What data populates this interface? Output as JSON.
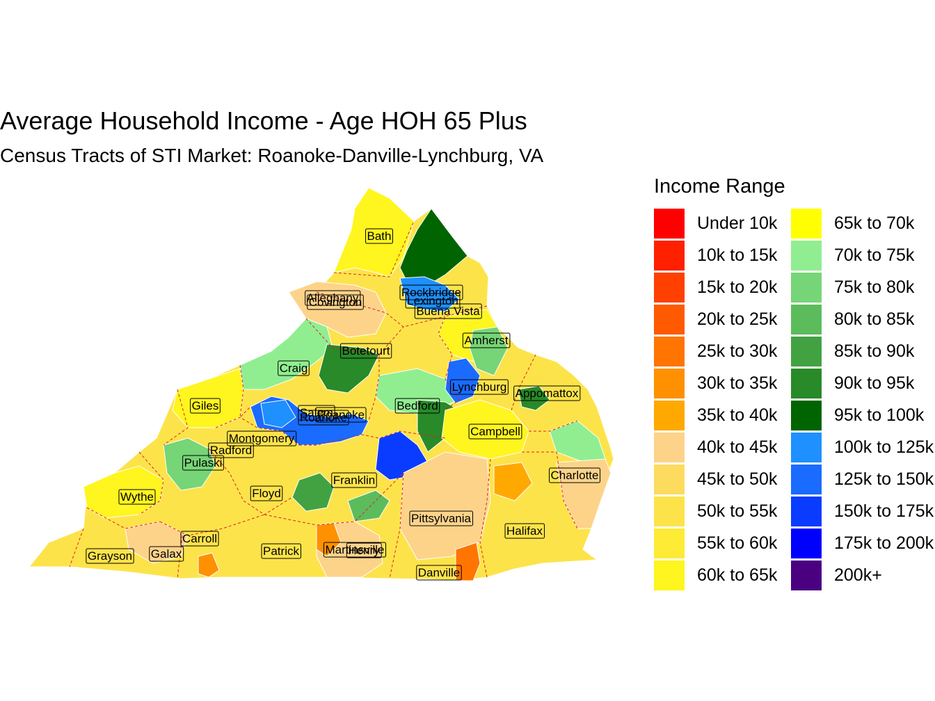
{
  "title": "Average Household Income - Age HOH 65 Plus",
  "subtitle": "Census Tracts of STI Market: Roanoke-Danville-Lynchburg, VA",
  "legend": {
    "title": "Income Range",
    "items": [
      {
        "label": "Under 10k",
        "color": "#FF0000"
      },
      {
        "label": "10k to 15k",
        "color": "#FF2000"
      },
      {
        "label": "15k to 20k",
        "color": "#FF4000"
      },
      {
        "label": "20k to 25k",
        "color": "#FF5A00"
      },
      {
        "label": "25k to 30k",
        "color": "#FF7500"
      },
      {
        "label": "30k to 35k",
        "color": "#FF9000"
      },
      {
        "label": "35k to 40k",
        "color": "#FFA800"
      },
      {
        "label": "40k to 45k",
        "color": "#FDD38A"
      },
      {
        "label": "45k to 50k",
        "color": "#FDDB5E"
      },
      {
        "label": "50k to 55k",
        "color": "#FDE34A"
      },
      {
        "label": "55k to 60k",
        "color": "#FEEB35"
      },
      {
        "label": "60k to 65k",
        "color": "#FFF51F"
      },
      {
        "label": "65k to 70k",
        "color": "#FFFF00"
      },
      {
        "label": "70k to 75k",
        "color": "#90EE90"
      },
      {
        "label": "75k to 80k",
        "color": "#76D576"
      },
      {
        "label": "80k to 85k",
        "color": "#5CBC5C"
      },
      {
        "label": "85k to 90k",
        "color": "#42A242"
      },
      {
        "label": "90k to 95k",
        "color": "#288A28"
      },
      {
        "label": "95k to 100k",
        "color": "#006400"
      },
      {
        "label": "100k to 125k",
        "color": "#1E90FF"
      },
      {
        "label": "125k to 150k",
        "color": "#1A6BFF"
      },
      {
        "label": "150k to 175k",
        "color": "#0A3CFF"
      },
      {
        "label": "175k to 200k",
        "color": "#0000FF"
      },
      {
        "label": "200k+",
        "color": "#4B0082"
      }
    ]
  },
  "places": [
    "Bath",
    "Alleghany",
    "Covington",
    "Rockbridge",
    "Lexington",
    "Buena Vista",
    "Amherst",
    "Botetourt",
    "Craig",
    "Lynchburg",
    "Appomattox",
    "Giles",
    "Bedford",
    "Salem",
    "Roanoke",
    "Roanoke",
    "Campbell",
    "Montgomery",
    "Radford",
    "Pulaski",
    "Charlotte",
    "Franklin",
    "Wythe",
    "Floyd",
    "Pittsylvania",
    "Halifax",
    "Carroll",
    "Grayson",
    "Galax",
    "Patrick",
    "Martinsville",
    "Henry",
    "Danville"
  ]
}
